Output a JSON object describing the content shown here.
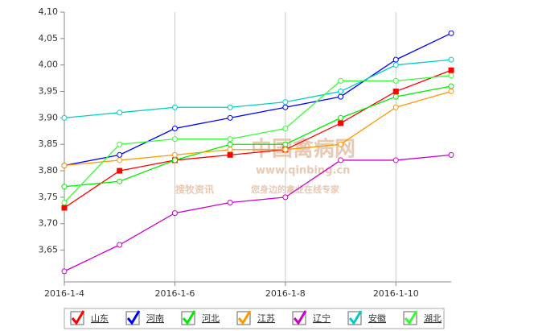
{
  "chart_data": {
    "type": "line",
    "categories": [
      "2016-1-4",
      null,
      "2016-1-6",
      null,
      "2016-1-8",
      null,
      "2016-1-10",
      null
    ],
    "ylim": [
      3.59,
      4.1
    ],
    "yticks": [
      {
        "value": 3.65,
        "label": "3,65"
      },
      {
        "value": 3.7,
        "label": "3,70"
      },
      {
        "value": 3.75,
        "label": "3,75"
      },
      {
        "value": 3.8,
        "label": "3,80"
      },
      {
        "value": 3.85,
        "label": "3,85"
      },
      {
        "value": 3.9,
        "label": "3,90"
      },
      {
        "value": 3.95,
        "label": "3,95"
      },
      {
        "value": 4.0,
        "label": "4,00"
      },
      {
        "value": 4.05,
        "label": "4,05"
      },
      {
        "value": 4.1,
        "label": "4,10"
      }
    ],
    "grid": true,
    "legend": "bottom",
    "series": [
      {
        "name": "山东",
        "color": "#ff0000",
        "marker": "square",
        "values": [
          3.73,
          3.8,
          3.82,
          3.83,
          3.84,
          3.89,
          3.95,
          3.99
        ]
      },
      {
        "name": "河南",
        "color": "#0000ff",
        "marker": "circle",
        "values": [
          3.81,
          3.83,
          3.88,
          3.9,
          3.92,
          3.94,
          4.01,
          4.06
        ]
      },
      {
        "name": "河北",
        "color": "#00ee00",
        "marker": "circle",
        "values": [
          3.77,
          3.78,
          3.82,
          3.85,
          3.85,
          3.9,
          3.94,
          3.96
        ]
      },
      {
        "name": "江苏",
        "color": "#ff9900",
        "marker": "circle",
        "values": [
          3.81,
          3.82,
          3.83,
          3.84,
          3.84,
          3.85,
          3.92,
          3.95
        ]
      },
      {
        "name": "辽宁",
        "color": "#cc00cc",
        "marker": "circle",
        "values": [
          3.61,
          3.66,
          3.72,
          3.74,
          3.75,
          3.82,
          3.82,
          3.83
        ]
      },
      {
        "name": "安徽",
        "color": "#00cccc",
        "marker": "circle",
        "values": [
          3.9,
          3.91,
          3.92,
          3.92,
          3.93,
          3.95,
          4.0,
          4.01
        ]
      },
      {
        "name": "湖北",
        "color": "#33ff33",
        "marker": "circle",
        "values": [
          3.74,
          3.85,
          3.86,
          3.86,
          3.88,
          3.97,
          3.97,
          3.98
        ]
      }
    ],
    "watermark": {
      "site": "中国禽病网",
      "url": "www.qinbing.cn",
      "brand": "搜牧资讯",
      "slogan": "您身边的禽业在线专家"
    }
  }
}
